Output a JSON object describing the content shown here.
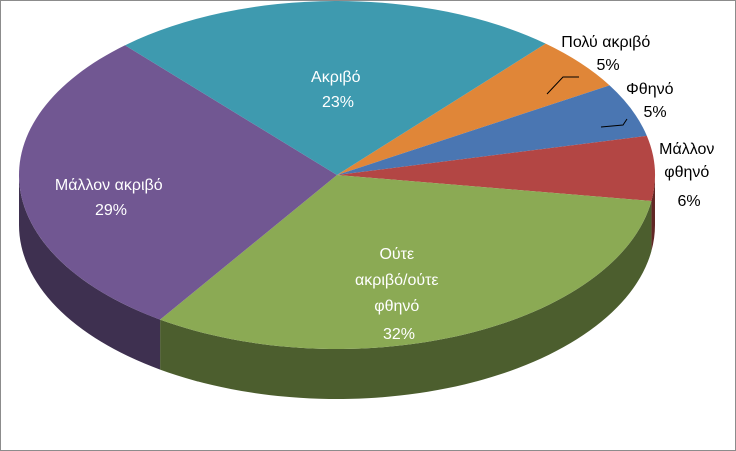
{
  "chart_data": {
    "type": "pie",
    "style": "3d",
    "legend": "none",
    "slices": [
      {
        "label": "Πολύ ακριβό",
        "value": 5,
        "value_label": "5%",
        "color": "#E08638"
      },
      {
        "label": "Φθηνό",
        "value": 5,
        "value_label": "5%",
        "color": "#4A76B2"
      },
      {
        "label": "Μάλλον φθηνό",
        "value": 6,
        "value_label": "6%",
        "color": "#B34644"
      },
      {
        "label": "Ούτε ακριβό/ούτε φθηνό",
        "value": 32,
        "value_label": "32%",
        "color": "#8BAA54"
      },
      {
        "label": "Μάλλον ακριβό",
        "value": 29,
        "value_label": "29%",
        "color": "#715792"
      },
      {
        "label": "Ακριβό",
        "value": 23,
        "value_label": "23%",
        "color": "#3E9AAF"
      }
    ]
  }
}
